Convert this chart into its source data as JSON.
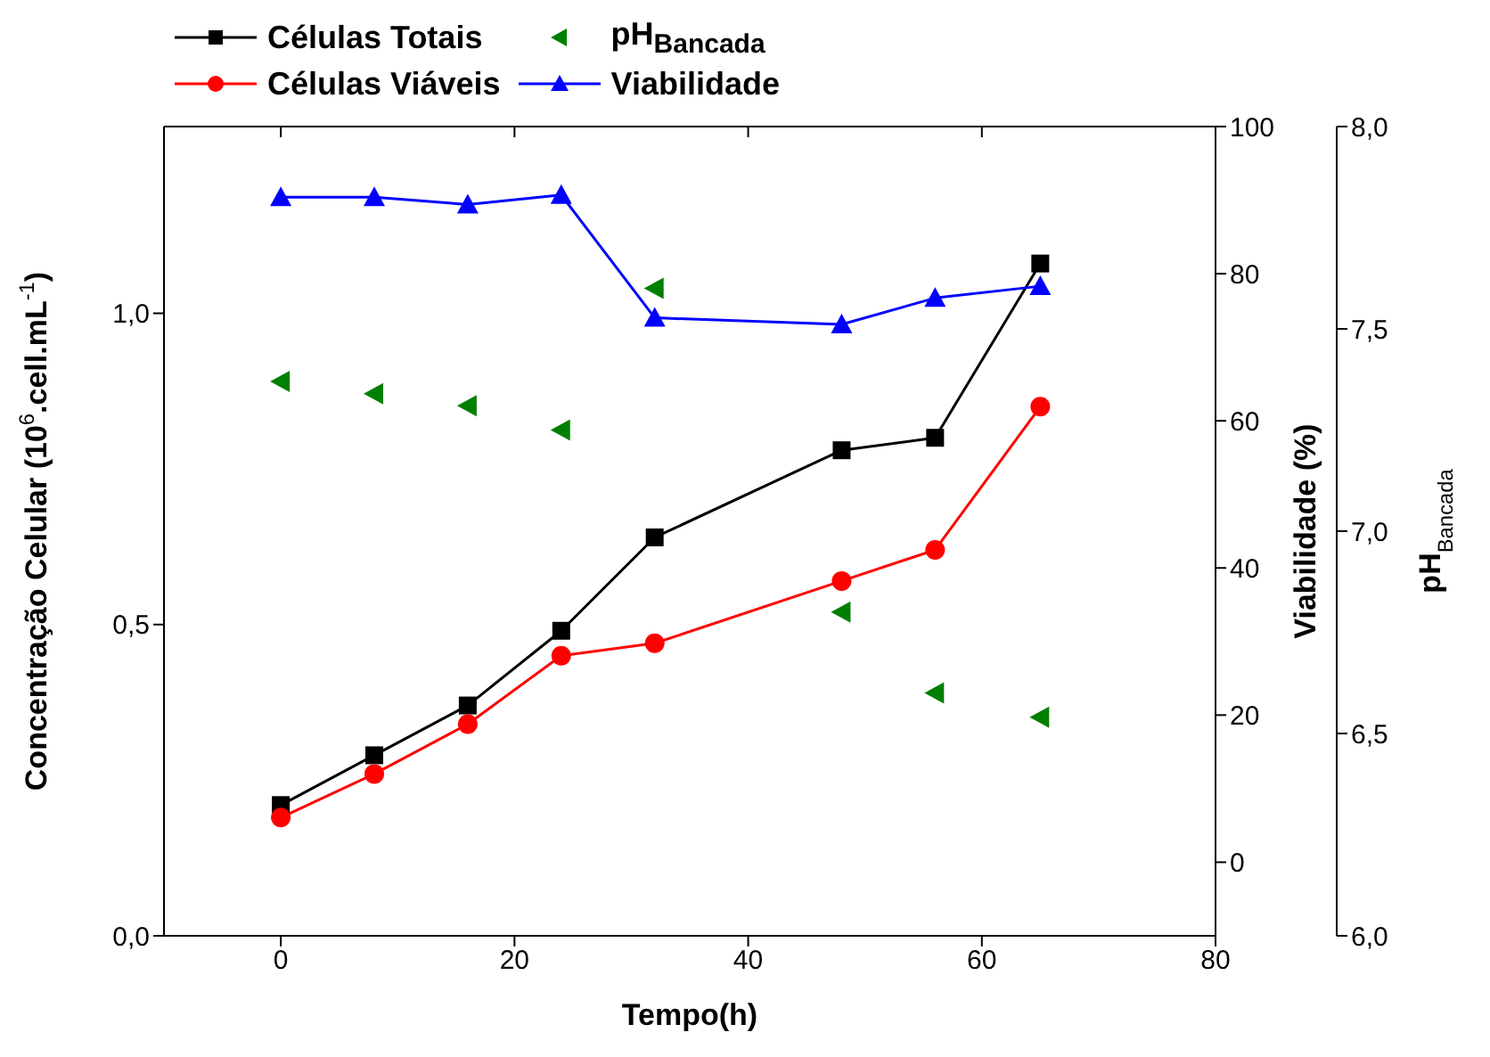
{
  "chart_data": {
    "type": "line",
    "xlabel": "Tempo(h)",
    "ylabel": "Concentração Celular (10$^{6}$.cell.mL$^{-1}$)",
    "y2label": "Viabilidade (%)",
    "y3label": "pH$_{Bancada}$",
    "x": [
      0,
      8,
      16,
      24,
      32,
      48,
      56,
      65
    ],
    "xlim": [
      -10,
      80
    ],
    "xticks": [
      0,
      20,
      40,
      60,
      80
    ],
    "ylim": [
      0,
      1.3
    ],
    "yticks": [
      {
        "value": 0,
        "label": "0,0"
      },
      {
        "value": 0.5,
        "label": "0,5"
      },
      {
        "value": 1,
        "label": "1,0"
      }
    ],
    "y2lim": [
      -10,
      100
    ],
    "y2ticks": [
      0,
      20,
      40,
      60,
      80,
      100
    ],
    "y3lim": [
      6,
      8
    ],
    "y3ticks": [
      {
        "value": 6,
        "label": "6,0"
      },
      {
        "value": 6.5,
        "label": "6,5"
      },
      {
        "value": 7,
        "label": "7,0"
      },
      {
        "value": 7.5,
        "label": "7,5"
      },
      {
        "value": 8,
        "label": "8,0"
      }
    ],
    "legend": "top left",
    "grid": false,
    "series": [
      {
        "name": "Células Totais",
        "color": "#000000",
        "marker": "square",
        "values": [
          0.21,
          0.29,
          0.37,
          0.49,
          0.64,
          0.78,
          0.8,
          1.08
        ]
      },
      {
        "name": "pH$_{Bancada}$",
        "type": "scatter",
        "axis": "y3",
        "color": "#008000",
        "marker": "triangle",
        "values": [
          7.37,
          7.34,
          7.31,
          7.25,
          7.6,
          6.8,
          6.6,
          6.54
        ]
      },
      {
        "name": "Células Viáveis",
        "color": "#ff0000",
        "marker": "circle",
        "values": [
          0.19,
          0.26,
          0.34,
          0.45,
          0.47,
          0.57,
          0.62,
          0.85
        ]
      },
      {
        "name": "Viabilidade",
        "color": "#0000ff",
        "marker": "triangle",
        "axis": "y2",
        "values": [
          90.4,
          90.4,
          89.4,
          90.7,
          74,
          73.1,
          76.7,
          78.3
        ]
      }
    ]
  }
}
